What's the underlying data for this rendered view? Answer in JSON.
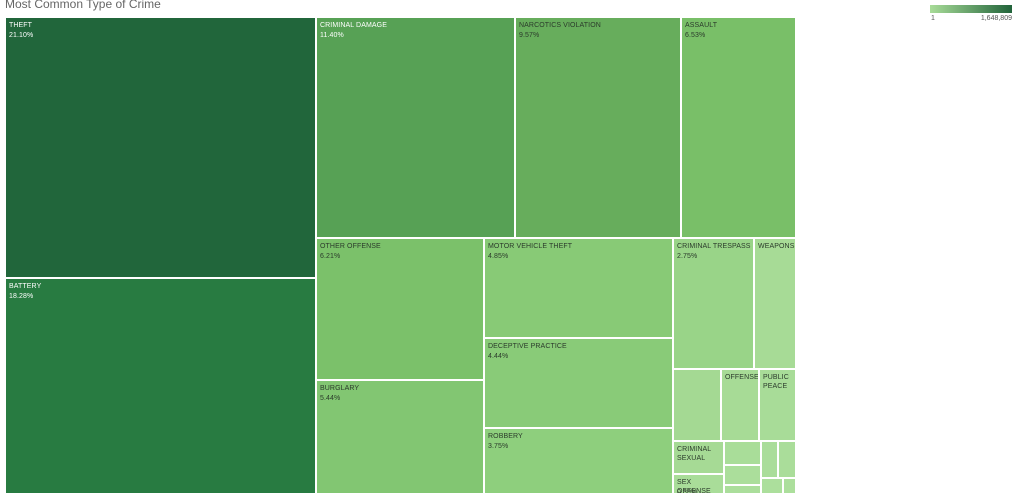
{
  "title": "Most Common Type of Crime",
  "legend": {
    "min_label": "1",
    "max_label": "1,648,809",
    "color_min": "#a8dc98",
    "color_max": "#21633a"
  },
  "chart_data": {
    "type": "treemap",
    "title": "Most Common Type of Crime",
    "color_measure_range": [
      1,
      1648809
    ],
    "items": [
      {
        "label": "THEFT",
        "value": 21.1,
        "pct": "21.10%",
        "color": "#21663b"
      },
      {
        "label": "BATTERY",
        "value": 18.28,
        "pct": "18.28%",
        "color": "#287b41"
      },
      {
        "label": "CRIMINAL DAMAGE",
        "value": 11.4,
        "pct": "11.40%",
        "color": "#57a155"
      },
      {
        "label": "NARCOTICS VIOLATION",
        "value": 9.57,
        "pct": "9.57%",
        "color": "#67ad5c"
      },
      {
        "label": "ASSAULT",
        "value": 6.53,
        "pct": "6.53%",
        "color": "#79bf68"
      },
      {
        "label": "OTHER OFFENSE",
        "value": 6.21,
        "pct": "6.21%",
        "color": "#7bc16a"
      },
      {
        "label": "BURGLARY",
        "value": 5.44,
        "pct": "5.44%",
        "color": "#82c672"
      },
      {
        "label": "MOTOR VEHICLE THEFT",
        "value": 4.85,
        "pct": "4.85%",
        "color": "#88ca76"
      },
      {
        "label": "DECEPTIVE PRACTICE",
        "value": 4.44,
        "pct": "4.44%",
        "color": "#89cb78"
      },
      {
        "label": "ROBBERY",
        "value": 3.75,
        "pct": "3.75%",
        "color": "#8ecf7d"
      },
      {
        "label": "CRIMINAL TRESPASS",
        "value": 2.75,
        "pct": "2.75%",
        "color": "#99d488"
      },
      {
        "label": "WEAPONS",
        "value": null,
        "pct": "",
        "color": "#a7db96"
      },
      {
        "label": "",
        "value": null,
        "pct": "",
        "color": "#a4d993"
      },
      {
        "label": "OFFENSE",
        "value": null,
        "pct": "",
        "color": "#a7db96"
      },
      {
        "label": "PUBLIC PEACE",
        "value": null,
        "pct": "",
        "color": "#a8dc98"
      },
      {
        "label": "CRIMINAL SEXUAL",
        "value": null,
        "pct": "",
        "color": "#a6da95"
      },
      {
        "label": "SEX OFFENSE",
        "value": 0.39,
        "pct": "0.39%",
        "color": "#a9dd99"
      },
      {
        "label": "",
        "value": null,
        "pct": "",
        "color": "#a9dd99"
      },
      {
        "label": "",
        "value": null,
        "pct": "",
        "color": "#aadd9a"
      },
      {
        "label": "",
        "value": null,
        "pct": "",
        "color": "#aadd9a"
      },
      {
        "label": "",
        "value": null,
        "pct": "",
        "color": "#abde9b"
      },
      {
        "label": "",
        "value": null,
        "pct": "",
        "color": "#abde9b"
      },
      {
        "label": "",
        "value": null,
        "pct": "",
        "color": "#acdf9c"
      },
      {
        "label": "",
        "value": null,
        "pct": "",
        "color": "#acdf9c"
      }
    ]
  }
}
